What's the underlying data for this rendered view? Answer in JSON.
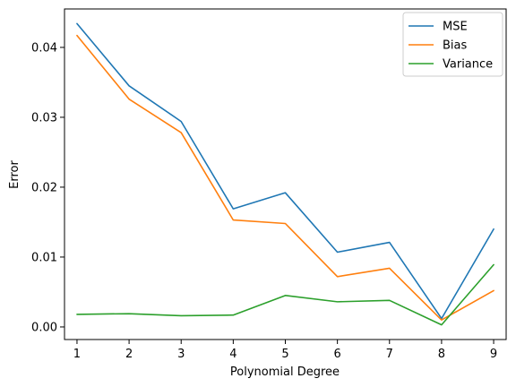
{
  "chart_data": {
    "type": "line",
    "title": "",
    "xlabel": "Polynomial Degree",
    "ylabel": "Error",
    "x": [
      1,
      2,
      3,
      4,
      5,
      6,
      7,
      8,
      9
    ],
    "xlim": [
      0.76,
      9.24
    ],
    "ylim": [
      -0.0018,
      0.0455
    ],
    "xticks": [
      "1",
      "2",
      "3",
      "4",
      "5",
      "6",
      "7",
      "8",
      "9"
    ],
    "yticks": [
      "0.00",
      "0.01",
      "0.02",
      "0.03",
      "0.04"
    ],
    "grid": false,
    "legend_position": "top-right",
    "series": [
      {
        "name": "MSE",
        "color": "#1f77b4",
        "values": [
          0.0434,
          0.0345,
          0.0294,
          0.0169,
          0.0192,
          0.0107,
          0.0121,
          0.0012,
          0.014
        ]
      },
      {
        "name": "Bias",
        "color": "#ff7f0e",
        "values": [
          0.0417,
          0.0326,
          0.0278,
          0.0153,
          0.0148,
          0.0072,
          0.0084,
          0.001,
          0.0052
        ]
      },
      {
        "name": "Variance",
        "color": "#2ca02c",
        "values": [
          0.0018,
          0.0019,
          0.0016,
          0.0017,
          0.0045,
          0.0036,
          0.0038,
          0.0003,
          0.0089
        ]
      }
    ]
  }
}
